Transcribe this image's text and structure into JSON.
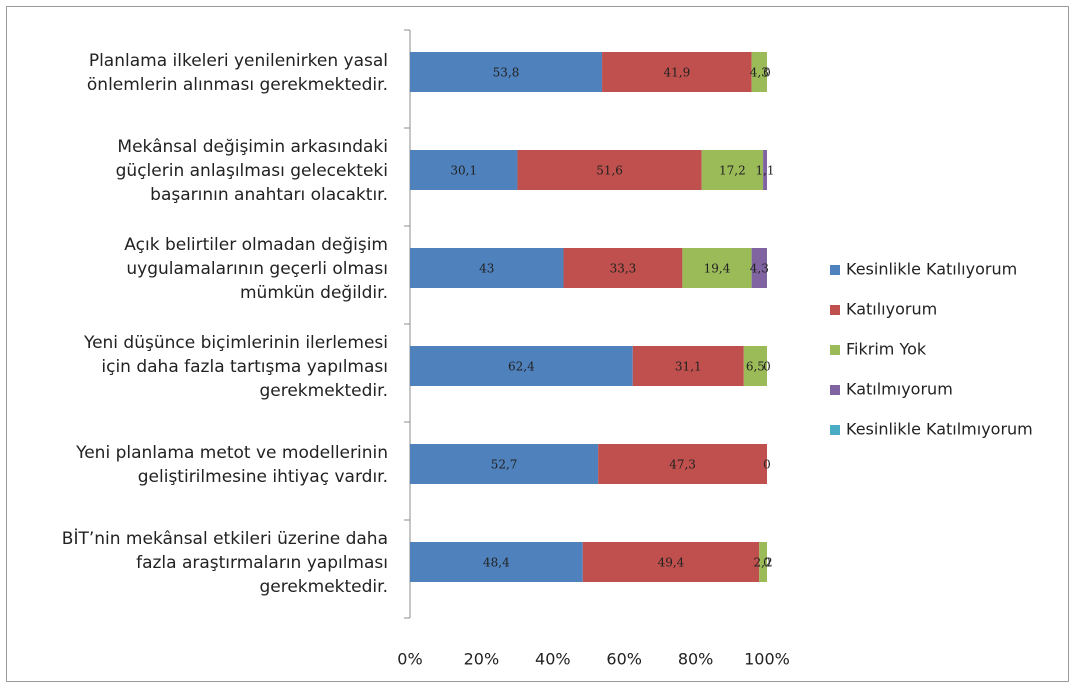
{
  "chart_data": {
    "type": "stacked-barh",
    "categories": [
      "Planlama ilkeleri yenilenirken yasal\nönlemlerin alınması gerekmektedir.",
      "Mekânsal değişimin arkasındaki\ngüçlerin anlaşılması gelecekteki\nbaşarının anahtarı olacaktır.",
      "Açık belirtiler olmadan değişim\nuygulamalarının geçerli olması\nmümkün değildir.",
      "Yeni düşünce biçimlerinin ilerlemesi\niçin daha fazla tartışma yapılması\ngerekmektedir.",
      "Yeni planlama metot ve modellerinin\ngeliştirilmesine ihtiyaç vardır.",
      "BİT’nin mekânsal etkileri üzerine daha\nfazla araştırmaların yapılması\ngerekmektedir."
    ],
    "series": [
      {
        "name": "Kesinlikle Katılıyorum",
        "color": "#4f81bd",
        "values": [
          53.8,
          30.1,
          43,
          62.4,
          52.7,
          48.4
        ],
        "value_labels": [
          "53,8",
          "30,1",
          "43",
          "62,4",
          "52,7",
          "48,4"
        ]
      },
      {
        "name": "Katılıyorum",
        "color": "#c0504d",
        "values": [
          41.9,
          51.6,
          33.3,
          31.1,
          47.3,
          49.4
        ],
        "value_labels": [
          "41,9",
          "51,6",
          "33,3",
          "31,1",
          "47,3",
          "49,4"
        ]
      },
      {
        "name": "Fikrim Yok",
        "color": "#9bbb59",
        "values": [
          4.3,
          17.2,
          19.4,
          6.5,
          0,
          2.2
        ],
        "value_labels": [
          "4,3",
          "17,2",
          "19,4",
          "6,5",
          "0",
          "2,2"
        ]
      },
      {
        "name": "Katılmıyorum",
        "color": "#8064a2",
        "values": [
          0,
          1.1,
          4.3,
          0,
          null,
          0
        ],
        "value_labels": [
          "0",
          "1,1",
          "4,3",
          "0",
          null,
          "0"
        ]
      },
      {
        "name": "Kesinlikle Katılmıyorum",
        "color": "#4bacc6",
        "values": [
          0,
          0,
          0,
          0,
          0,
          0
        ],
        "value_labels": [
          null,
          null,
          null,
          null,
          null,
          null
        ]
      }
    ],
    "xlim": [
      0,
      100
    ],
    "xticks": [
      {
        "value": 0,
        "label": "0%"
      },
      {
        "value": 20,
        "label": "20%"
      },
      {
        "value": 40,
        "label": "40%"
      },
      {
        "value": 60,
        "label": "60%"
      },
      {
        "value": 80,
        "label": "80%"
      },
      {
        "value": 100,
        "label": "100%"
      }
    ],
    "legend": "right"
  }
}
